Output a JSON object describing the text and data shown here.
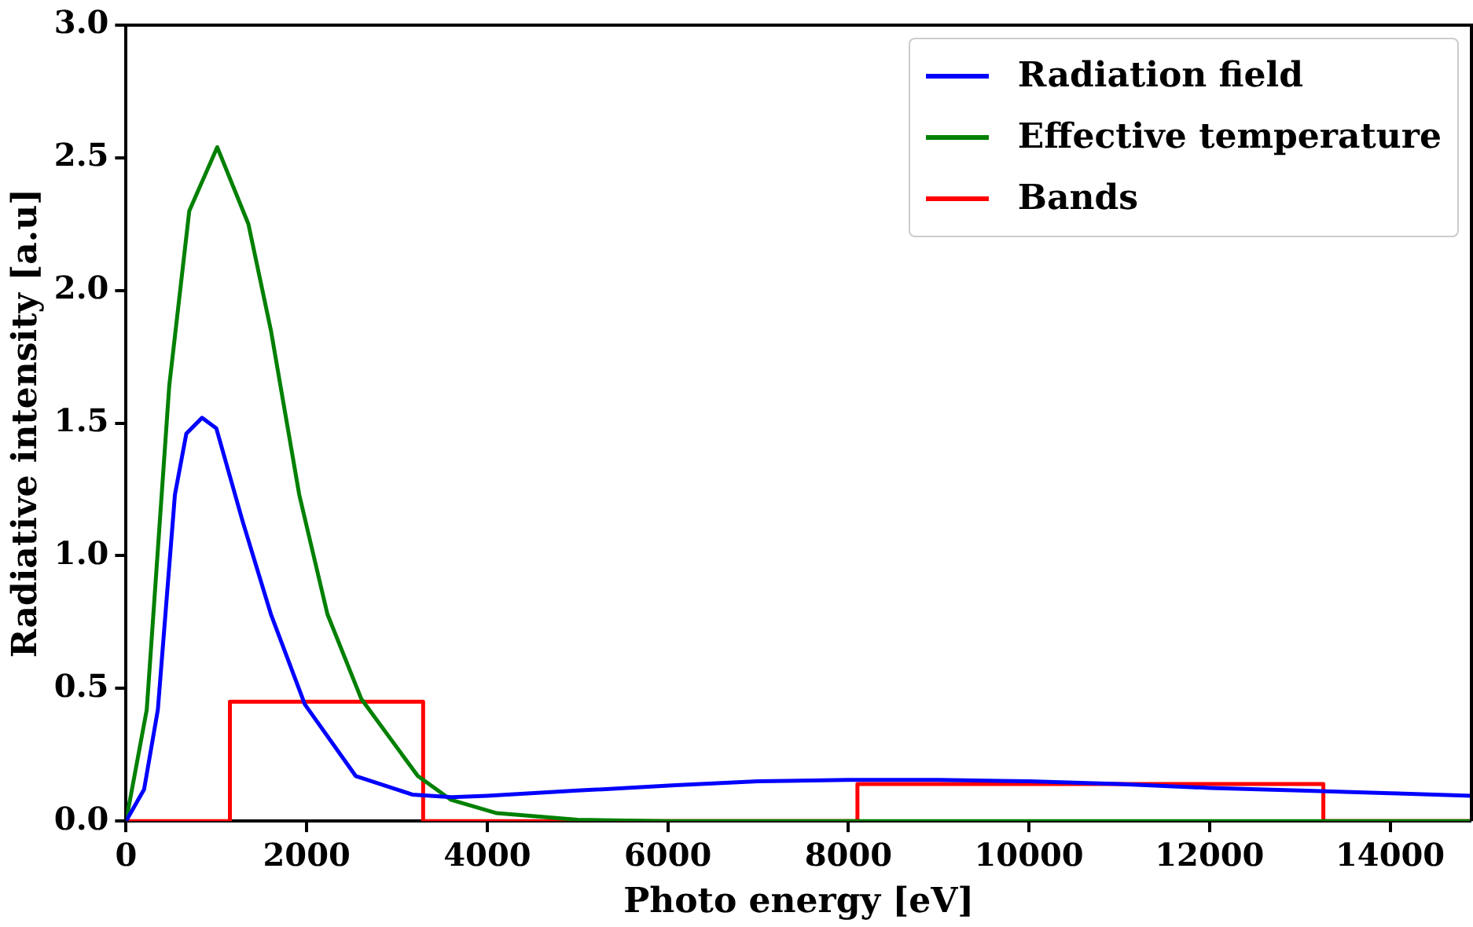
{
  "chart_data": {
    "type": "line",
    "xlabel": "Photo energy [eV]",
    "ylabel": "Radiative intensity [a.u]",
    "xlim": [
      0,
      14900
    ],
    "ylim": [
      0,
      3
    ],
    "xticks": [
      0,
      2000,
      4000,
      6000,
      8000,
      10000,
      12000,
      14000
    ],
    "yticks": [
      {
        "value": 0,
        "label": "0.0"
      },
      {
        "value": 0.5,
        "label": "0.5"
      },
      {
        "value": 1,
        "label": "1.0"
      },
      {
        "value": 1.5,
        "label": "1.5"
      },
      {
        "value": 2,
        "label": "2.0"
      },
      {
        "value": 2.5,
        "label": "2.5"
      },
      {
        "value": 3,
        "label": "3.0"
      }
    ],
    "grid": false,
    "legend": "top right",
    "marker": "none",
    "line_style": "solid",
    "series": [
      {
        "name": "Radiation field",
        "color": "#0000ff",
        "x": [
          0,
          200,
          352,
          541,
          667,
          841,
          1000,
          1291,
          1604,
          1980,
          2543,
          3170,
          3607,
          4000,
          5000,
          6085,
          7000,
          8000,
          9000,
          10000,
          11000,
          12000,
          13000,
          14000,
          14900
        ],
        "values": [
          0,
          0.12,
          0.42,
          1.23,
          1.46,
          1.52,
          1.48,
          1.13,
          0.78,
          0.44,
          0.17,
          0.1,
          0.09,
          0.095,
          0.115,
          0.135,
          0.15,
          0.155,
          0.155,
          0.15,
          0.14,
          0.125,
          0.115,
          0.105,
          0.095
        ]
      },
      {
        "name": "Effective temperature",
        "color": "#008000",
        "x": [
          0,
          229,
          478,
          700,
          1010,
          1355,
          1604,
          1918,
          2230,
          2606,
          3231,
          3600,
          4105,
          5000,
          6000,
          8000,
          10000,
          14900
        ],
        "values": [
          0,
          0.42,
          1.64,
          2.3,
          2.54,
          2.25,
          1.85,
          1.23,
          0.78,
          0.46,
          0.17,
          0.08,
          0.03,
          0.005,
          0,
          0,
          0,
          0
        ]
      },
      {
        "name": "Bands",
        "color": "#ff0000",
        "x": [
          0,
          1150,
          1150,
          3290,
          3290,
          8100,
          8100,
          13260,
          13260,
          14900
        ],
        "values": [
          0,
          0,
          0.45,
          0.45,
          0,
          0,
          0.14,
          0.14,
          0,
          0
        ]
      }
    ]
  }
}
